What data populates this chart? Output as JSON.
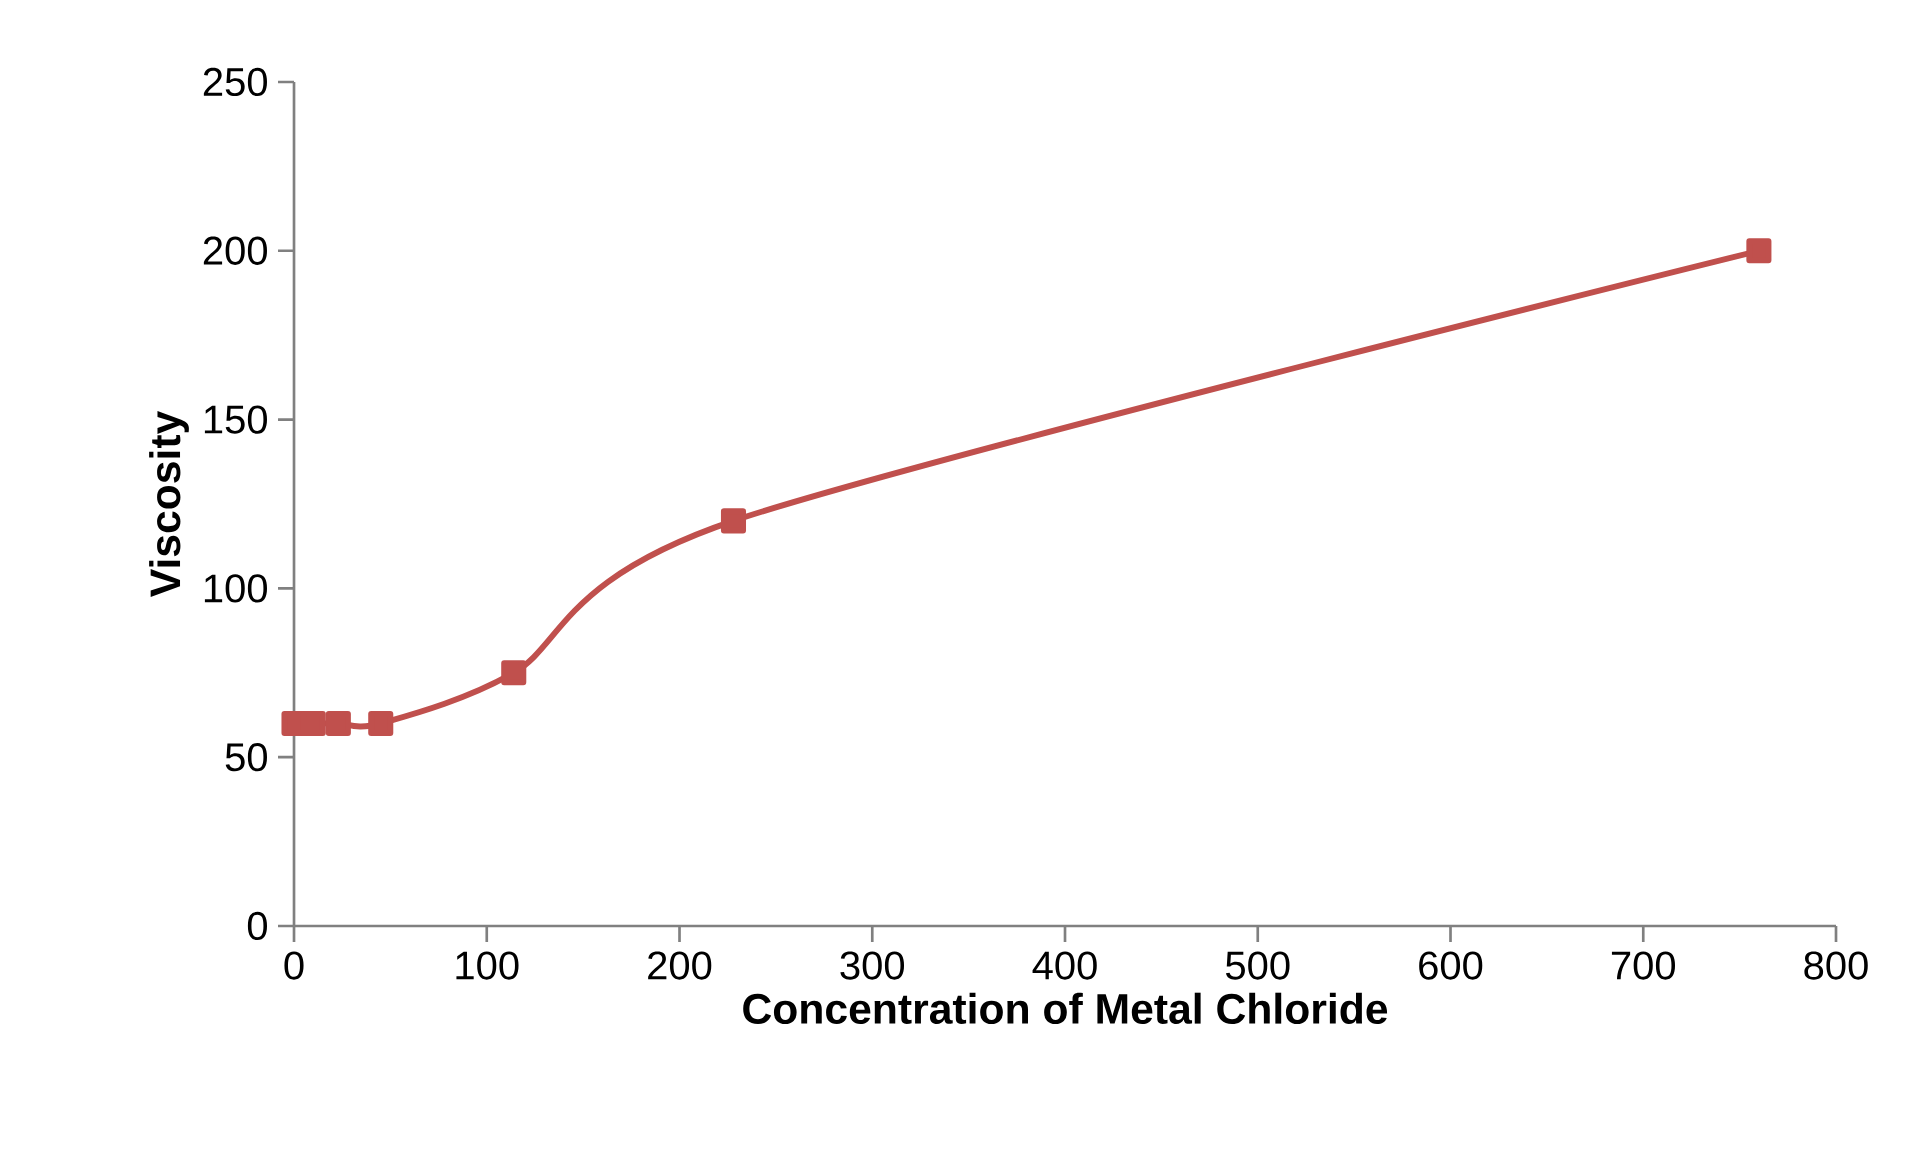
{
  "chart_data": {
    "type": "line",
    "xlabel": "Concentration of Metal Chloride",
    "ylabel": "Viscosity",
    "x": [
      0,
      10,
      23,
      45,
      114,
      228,
      760
    ],
    "series": [
      {
        "color": "#c0504d",
        "values": [
          60,
          60,
          60,
          60,
          75,
          120,
          200
        ]
      }
    ],
    "xlim": [
      0,
      800
    ],
    "xticks": [
      0,
      100,
      200,
      300,
      400,
      500,
      600,
      700,
      800
    ],
    "ylim": [
      0,
      250
    ],
    "yticks": [
      0,
      50,
      100,
      150,
      200,
      250
    ],
    "marker": "square",
    "line_style": "solid",
    "grid": false
  }
}
